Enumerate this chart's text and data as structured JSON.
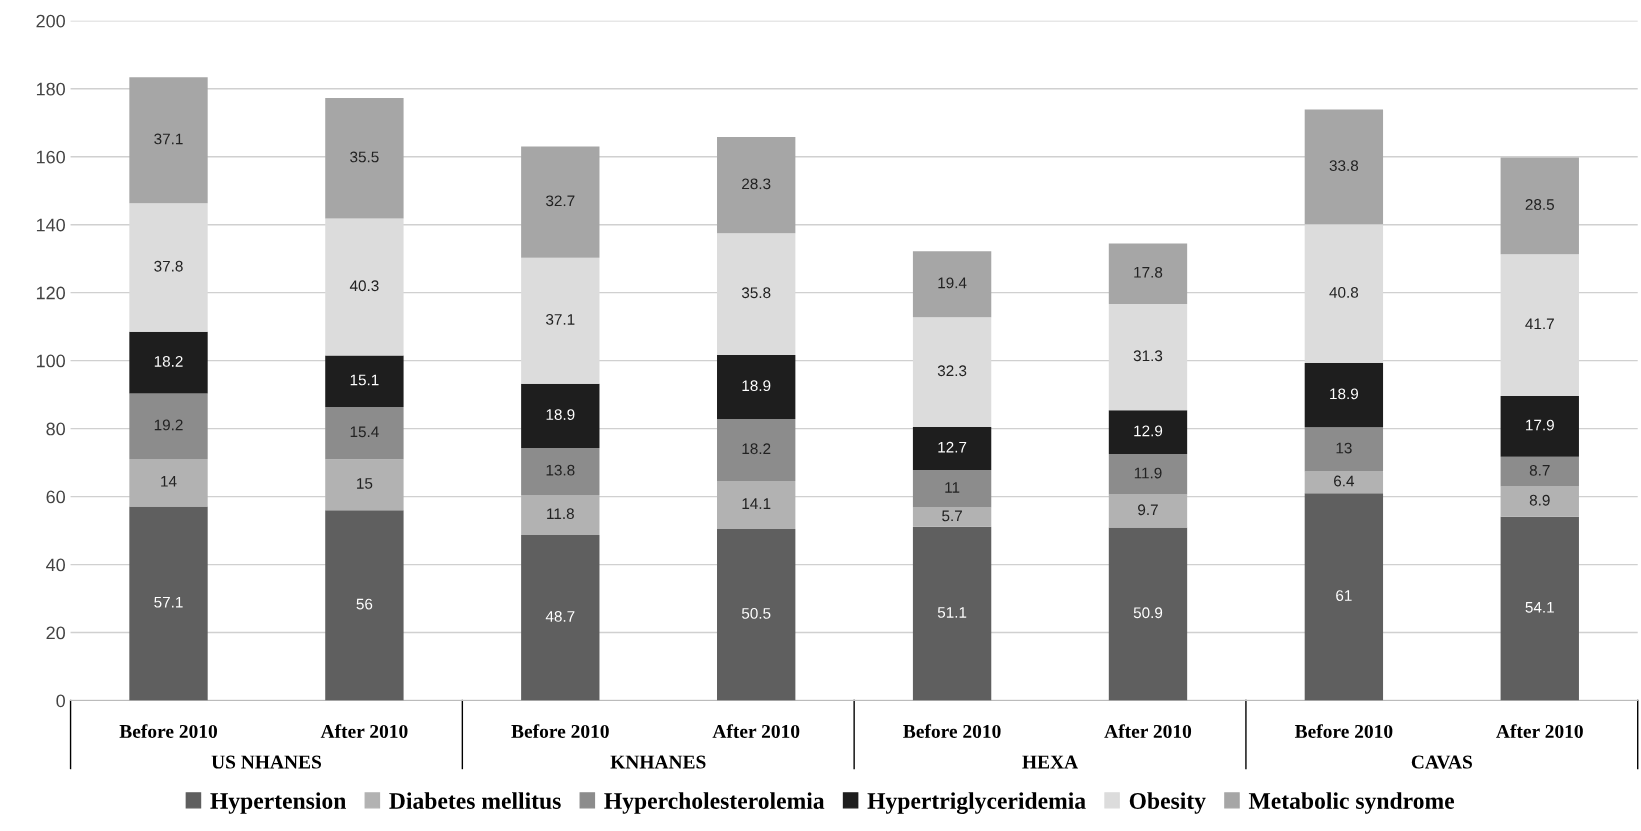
{
  "chart_data": {
    "type": "bar",
    "stacked": true,
    "data_labels": true,
    "grid": "y",
    "legend": "bottom",
    "categories": [
      "Before 2010",
      "After 2010",
      "Before 2010",
      "After 2010",
      "Before 2010",
      "After 2010",
      "Before 2010",
      "After 2010"
    ],
    "annotations": [
      "US NHANES",
      "KNHANES",
      "HEXA",
      "CAVAS"
    ],
    "ylim": [
      0,
      200
    ],
    "yticks": [
      0,
      20,
      40,
      60,
      80,
      100,
      120,
      140,
      160,
      180,
      200
    ],
    "series": [
      {
        "name": "Hypertension",
        "color": "#5f5f5f",
        "values": [
          57.1,
          56,
          48.7,
          50.5,
          51.1,
          50.9,
          61,
          54.1
        ]
      },
      {
        "name": "Diabetes mellitus",
        "color": "#b2b2b2",
        "values": [
          14,
          15,
          11.8,
          14.1,
          5.7,
          9.7,
          6.4,
          8.9
        ]
      },
      {
        "name": "Hypercholesterolemia",
        "color": "#8c8c8c",
        "values": [
          19.2,
          15.4,
          13.8,
          18.2,
          11,
          11.9,
          13,
          8.7
        ]
      },
      {
        "name": "Hypertriglyceridemia",
        "color": "#1e1e1e",
        "values": [
          18.2,
          15.1,
          18.9,
          18.9,
          12.7,
          12.9,
          18.9,
          17.9
        ]
      },
      {
        "name": "Obesity",
        "color": "#dcdcdc",
        "values": [
          37.8,
          40.3,
          37.1,
          35.8,
          32.3,
          31.3,
          40.8,
          41.7
        ]
      },
      {
        "name": "Metabolic syndrome",
        "color": "#a6a6a6",
        "values": [
          37.1,
          35.5,
          32.7,
          28.3,
          19.4,
          17.8,
          33.8,
          28.5
        ]
      }
    ]
  }
}
